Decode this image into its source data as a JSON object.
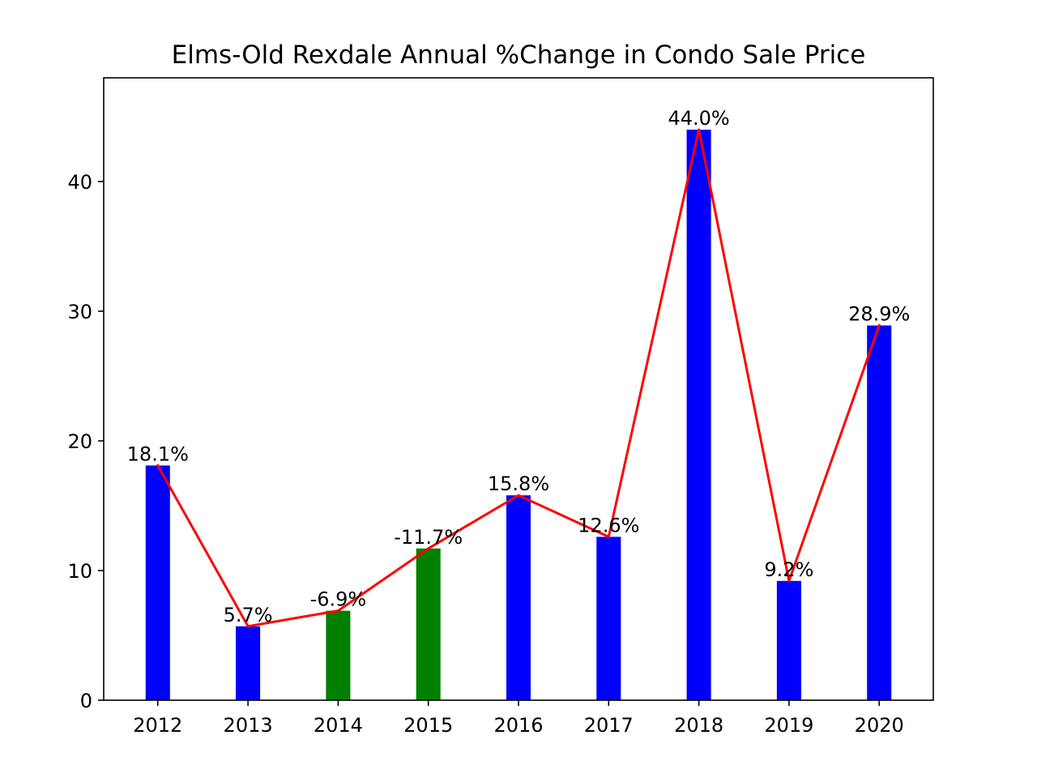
{
  "chart_data": {
    "type": "bar",
    "title": "Elms-Old Rexdale Annual %Change in Condo Sale Price",
    "xlabel": "",
    "ylabel": "",
    "categories": [
      "2012",
      "2013",
      "2014",
      "2015",
      "2016",
      "2017",
      "2018",
      "2019",
      "2020"
    ],
    "values": [
      18.1,
      5.7,
      6.9,
      11.7,
      15.8,
      12.6,
      44.0,
      9.2,
      28.9
    ],
    "data_labels": [
      "18.1%",
      "5.7%",
      "-6.9%",
      "-11.7%",
      "15.8%",
      "12.6%",
      "44.0%",
      "9.2%",
      "28.9%"
    ],
    "bar_colors": [
      "#0000ff",
      "#0000ff",
      "#008000",
      "#008000",
      "#0000ff",
      "#0000ff",
      "#0000ff",
      "#0000ff",
      "#0000ff"
    ],
    "line_color": "#ff0000",
    "ylim": [
      0,
      48
    ],
    "yticks": [
      "0",
      "10",
      "20",
      "30",
      "40"
    ],
    "ytick_values": [
      0,
      10,
      20,
      30,
      40
    ],
    "grid": false,
    "legend": "none"
  }
}
